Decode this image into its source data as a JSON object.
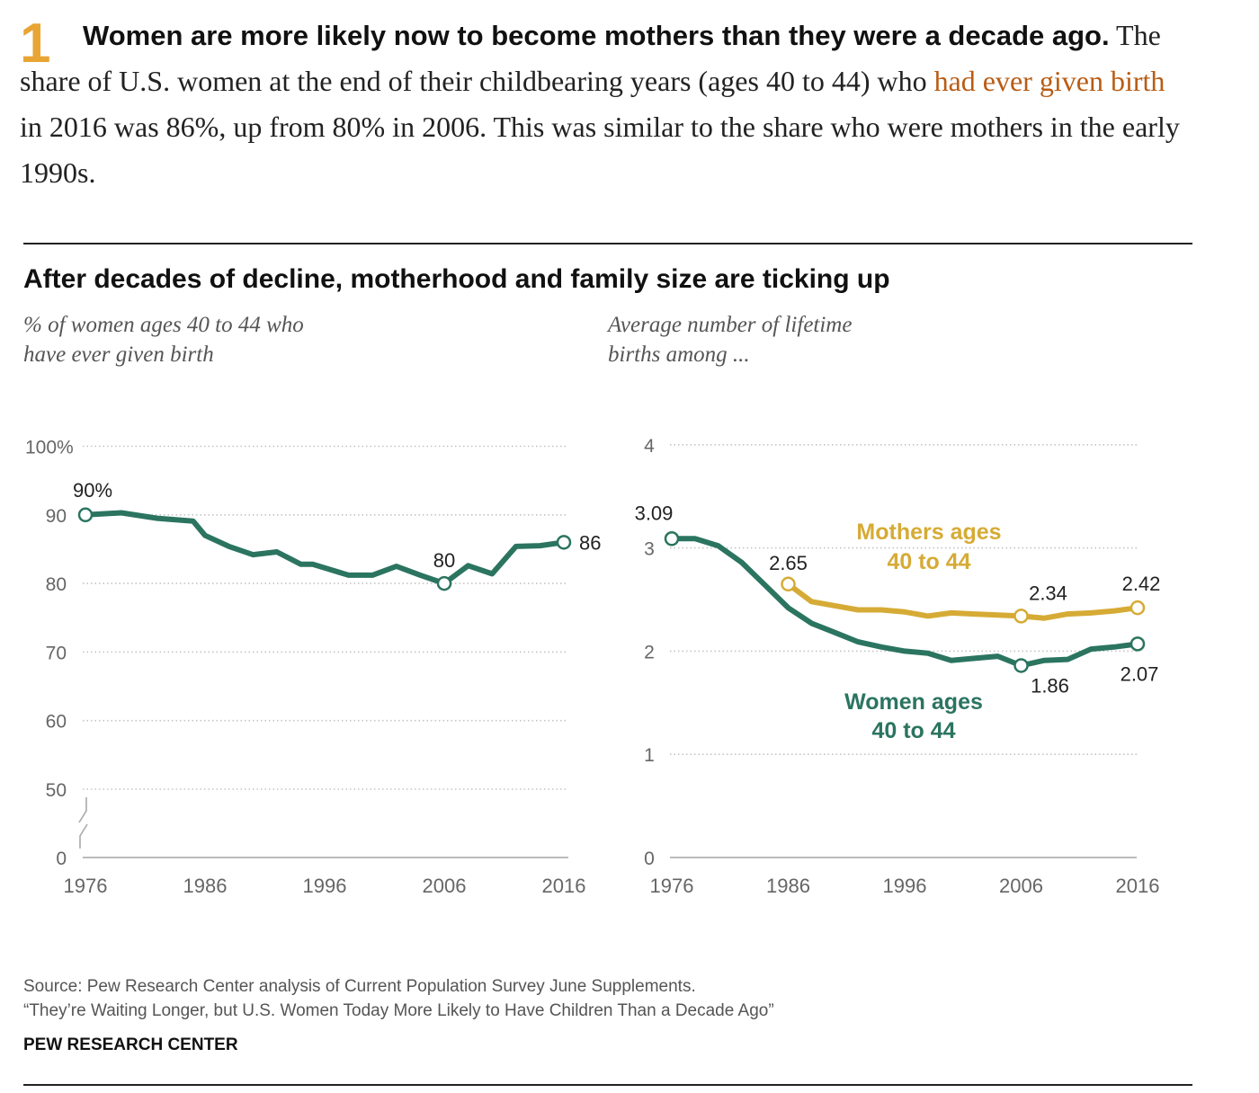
{
  "intro": {
    "number": "1",
    "lead": "Women are more likely now to become mothers than they were a decade ago.",
    "text_before_link": " The share of U.S. women at the end of their childbearing years (ages 40 to 44) who ",
    "link_text": "had ever given birth",
    "text_after_link": " in 2016 was 86%, up from 80% in 2006. This was similar to the share who were mothers in the early 1990s."
  },
  "chart_title": "After decades of decline, motherhood and family size are ticking up",
  "source_line1": "Source: Pew Research Center analysis of Current Population Survey June Supplements.",
  "source_line2": "“They’re Waiting Longer, but U.S. Women Today More Likely to Have Children Than a Decade Ago”",
  "brand": "PEW RESEARCH CENTER",
  "colors": {
    "green": "#2b7460",
    "gold": "#d6ab35",
    "accent": "#e8a534",
    "link": "#b85c14"
  },
  "chart_data": [
    {
      "type": "line",
      "subtitle_line1": "% of women ages 40 to 44 who",
      "subtitle_line2": "have ever given birth",
      "y_ticks": [
        {
          "value": 0,
          "label": "0"
        },
        {
          "value": 50,
          "label": "50"
        },
        {
          "value": 60,
          "label": "60"
        },
        {
          "value": 70,
          "label": "70"
        },
        {
          "value": 80,
          "label": "80"
        },
        {
          "value": 90,
          "label": "90"
        },
        {
          "value": 100,
          "label": "100%"
        }
      ],
      "axis_break": true,
      "x_ticks": [
        "1976",
        "1986",
        "1996",
        "2006",
        "2016"
      ],
      "series": [
        {
          "color": "#2b7460",
          "x": [
            1976,
            1979,
            1982,
            1985,
            1986,
            1988,
            1990,
            1992,
            1994,
            1995,
            1998,
            2000,
            2002,
            2004,
            2006,
            2008,
            2010,
            2012,
            2014,
            2016
          ],
          "y": [
            90,
            90.3,
            89.5,
            89.1,
            87,
            85.4,
            84.2,
            84.6,
            82.8,
            82.8,
            81.2,
            81.2,
            82.5,
            81.2,
            80,
            82.6,
            81.4,
            85.4,
            85.5,
            86
          ],
          "markers": [
            {
              "x": 1976,
              "y": 90,
              "label": "90%",
              "pos": "above"
            },
            {
              "x": 2006,
              "y": 80,
              "label": "80",
              "pos": "above"
            },
            {
              "x": 2016,
              "y": 86,
              "label": "86",
              "pos": "right"
            }
          ]
        }
      ]
    },
    {
      "type": "line",
      "subtitle_line1": "Average number of lifetime",
      "subtitle_line2": "births among ...",
      "y_ticks": [
        {
          "value": 0,
          "label": "0"
        },
        {
          "value": 1,
          "label": "1"
        },
        {
          "value": 2,
          "label": "2"
        },
        {
          "value": 3,
          "label": "3"
        },
        {
          "value": 4,
          "label": "4"
        }
      ],
      "x_ticks": [
        "1976",
        "1986",
        "1996",
        "2006",
        "2016"
      ],
      "series": [
        {
          "name_line1": "Mothers ages",
          "name_line2": "40 to 44",
          "color": "#d6ab35",
          "x": [
            1986,
            1988,
            1990,
            1992,
            1994,
            1996,
            1998,
            2000,
            2002,
            2004,
            2006,
            2008,
            2010,
            2012,
            2014,
            2016
          ],
          "y": [
            2.65,
            2.48,
            2.44,
            2.4,
            2.4,
            2.38,
            2.34,
            2.37,
            2.36,
            2.35,
            2.34,
            2.32,
            2.36,
            2.37,
            2.39,
            2.42
          ],
          "markers": [
            {
              "x": 1986,
              "y": 2.65,
              "label": "2.65",
              "pos": "above"
            },
            {
              "x": 2006,
              "y": 2.34,
              "label": "2.34",
              "pos": "above-right"
            },
            {
              "x": 2016,
              "y": 2.42,
              "label": "2.42",
              "pos": "above"
            }
          ]
        },
        {
          "name_line1": "Women ages",
          "name_line2": "40 to 44",
          "color": "#2b7460",
          "x": [
            1976,
            1978,
            1980,
            1982,
            1984,
            1986,
            1988,
            1990,
            1992,
            1994,
            1996,
            1998,
            2000,
            2002,
            2004,
            2006,
            2008,
            2010,
            2012,
            2014,
            2016
          ],
          "y": [
            3.09,
            3.09,
            3.02,
            2.86,
            2.64,
            2.42,
            2.27,
            2.18,
            2.09,
            2.04,
            2.0,
            1.98,
            1.91,
            1.93,
            1.95,
            1.86,
            1.91,
            1.92,
            2.02,
            2.04,
            2.07
          ],
          "markers": [
            {
              "x": 1976,
              "y": 3.09,
              "label": "3.09",
              "pos": "above"
            },
            {
              "x": 2006,
              "y": 1.86,
              "label": "1.86",
              "pos": "below-right"
            },
            {
              "x": 2016,
              "y": 2.07,
              "label": "2.07",
              "pos": "below"
            }
          ]
        }
      ]
    }
  ]
}
